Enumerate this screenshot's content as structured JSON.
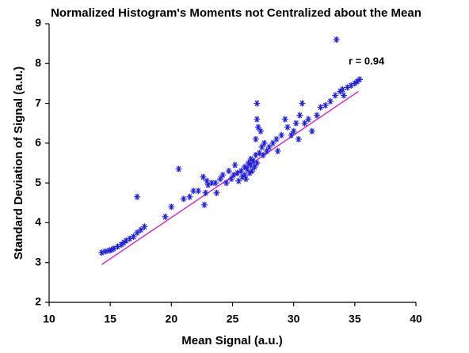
{
  "chart_data": {
    "type": "scatter",
    "title": "Normalized Histogram's Moments not Centralized about the Mean",
    "x_label": "Mean Signal (a.u.)",
    "y_label": "Standard Deviation of Signal (a.u.)",
    "annotation": "r = 0.94",
    "color": "#1f1fe0",
    "x": [
      14.3,
      14.6,
      14.9,
      15.1,
      15.3,
      15.6,
      15.9,
      16.1,
      16.3,
      16.6,
      16.9,
      17.2,
      17.5,
      17.8,
      17.2,
      19.5,
      20.0,
      20.6,
      21.0,
      21.5,
      21.8,
      22.2,
      22.6,
      22.7,
      22.8,
      23.0,
      23.3,
      23.6,
      23.7,
      24.0,
      24.2,
      24.5,
      24.7,
      24.9,
      25.1,
      25.2,
      25.4,
      25.5,
      25.7,
      25.8,
      26.0,
      26.0,
      26.1,
      26.2,
      26.3,
      26.4,
      26.5,
      26.5,
      26.6,
      26.7,
      26.8,
      26.9,
      26.9,
      27.0,
      27.0,
      27.0,
      27.1,
      27.2,
      27.3,
      27.4,
      27.5,
      27.6,
      27.8,
      28.0,
      28.3,
      28.6,
      29.0,
      29.3,
      29.5,
      29.8,
      30.0,
      30.2,
      30.4,
      30.5,
      30.7,
      30.9,
      31.2,
      31.5,
      31.9,
      32.2,
      32.6,
      33.0,
      33.4,
      33.5,
      33.8,
      34.1,
      34.4,
      34.7,
      35.0,
      35.2,
      35.4,
      34.0,
      28.7,
      22.9
    ],
    "values": [
      3.25,
      3.28,
      3.3,
      3.32,
      3.35,
      3.4,
      3.45,
      3.5,
      3.55,
      3.6,
      3.65,
      3.75,
      3.82,
      3.9,
      4.65,
      4.15,
      4.4,
      5.35,
      4.6,
      4.65,
      4.8,
      4.8,
      5.15,
      4.45,
      4.75,
      4.95,
      5.0,
      5.0,
      4.75,
      5.1,
      5.2,
      5.0,
      5.3,
      5.1,
      5.2,
      5.45,
      5.25,
      5.05,
      5.3,
      5.15,
      5.4,
      5.2,
      5.1,
      5.35,
      5.5,
      5.25,
      5.45,
      5.6,
      5.3,
      5.55,
      5.4,
      5.7,
      6.1,
      5.5,
      6.6,
      7.0,
      6.4,
      5.75,
      6.3,
      5.9,
      5.7,
      6.0,
      5.8,
      5.9,
      6.0,
      6.1,
      6.2,
      6.6,
      6.4,
      6.2,
      6.3,
      6.5,
      6.1,
      6.7,
      7.0,
      6.5,
      6.6,
      6.3,
      6.7,
      6.9,
      6.95,
      7.05,
      7.2,
      8.6,
      7.3,
      7.2,
      7.4,
      7.45,
      7.5,
      7.55,
      7.6,
      7.35,
      5.8,
      5.05
    ],
    "fit_line": {
      "x": [
        14.3,
        35.3
      ],
      "y": [
        2.95,
        7.3
      ],
      "color": "#cc33cc"
    },
    "xlim": [
      10,
      40
    ],
    "xticks": [
      10,
      15,
      20,
      25,
      30,
      35,
      40
    ],
    "ylim": [
      2,
      9
    ],
    "yticks": [
      2,
      3,
      4,
      5,
      6,
      7,
      8,
      9
    ]
  }
}
